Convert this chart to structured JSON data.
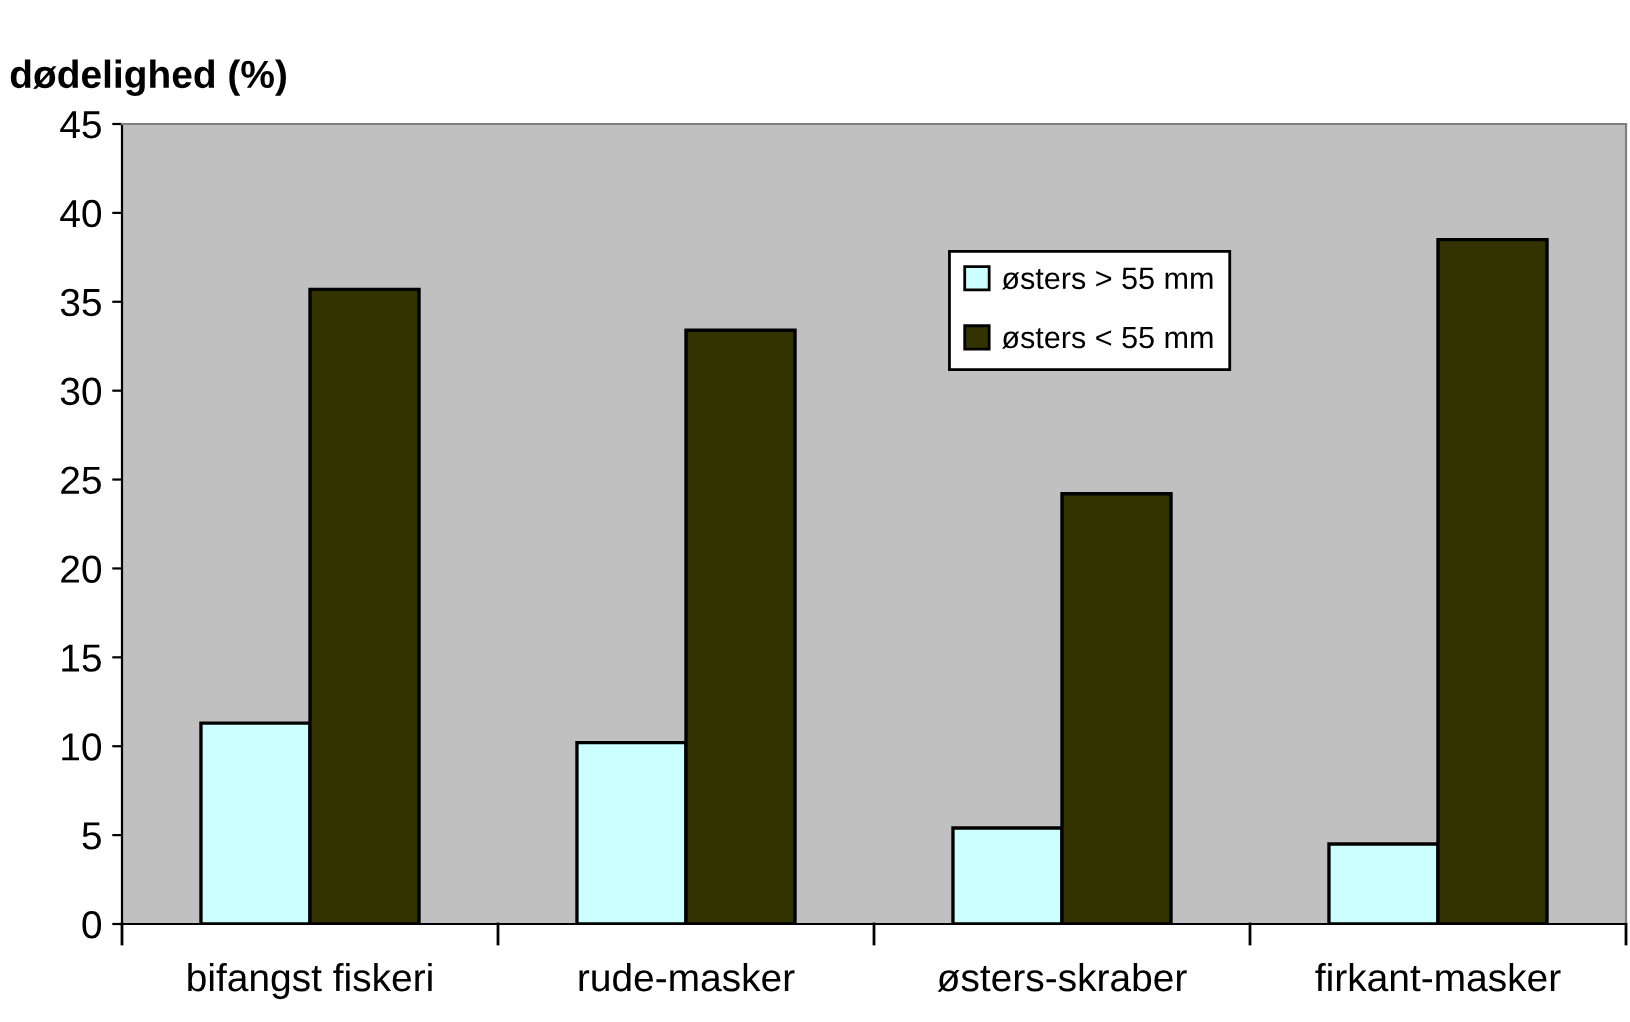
{
  "chart_data": {
    "type": "bar",
    "ylabel": "dødelighed (%)",
    "categories": [
      "bifangst fiskeri",
      "rude-masker",
      "østers-skraber",
      "firkant-masker"
    ],
    "series": [
      {
        "name": "østers > 55 mm",
        "color": "#ccffff",
        "values": [
          11.3,
          10.2,
          5.4,
          4.5
        ]
      },
      {
        "name": "østers < 55 mm",
        "color": "#333300",
        "values": [
          35.7,
          33.4,
          24.2,
          38.5
        ]
      }
    ],
    "ylim": [
      0,
      45
    ],
    "yticks": [
      0,
      5,
      10,
      15,
      20,
      25,
      30,
      35,
      40,
      45
    ],
    "grid": false,
    "legend": "top right"
  }
}
